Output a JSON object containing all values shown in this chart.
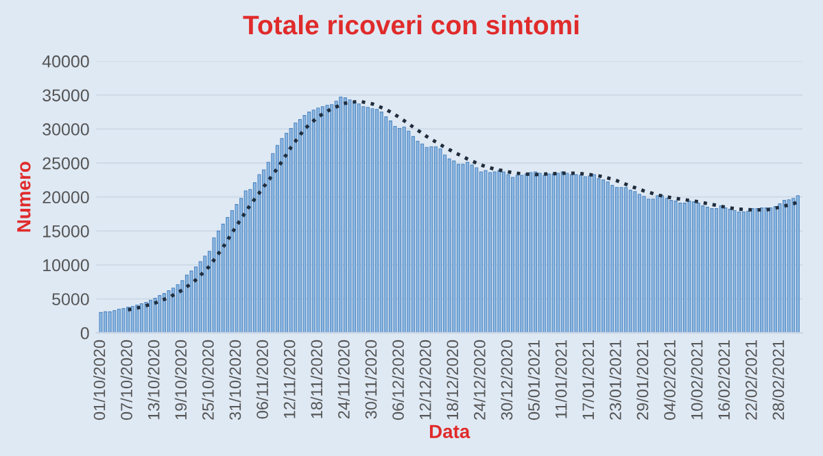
{
  "chart_data": {
    "type": "bar",
    "title": "Totale ricoveri con sintomi",
    "xlabel": "Data",
    "ylabel": "Numero",
    "x": [
      "2020-10-01",
      "2020-10-02",
      "2020-10-03",
      "2020-10-04",
      "2020-10-05",
      "2020-10-06",
      "2020-10-07",
      "2020-10-08",
      "2020-10-09",
      "2020-10-10",
      "2020-10-11",
      "2020-10-12",
      "2020-10-13",
      "2020-10-14",
      "2020-10-15",
      "2020-10-16",
      "2020-10-17",
      "2020-10-18",
      "2020-10-19",
      "2020-10-20",
      "2020-10-21",
      "2020-10-22",
      "2020-10-23",
      "2020-10-24",
      "2020-10-25",
      "2020-10-26",
      "2020-10-27",
      "2020-10-28",
      "2020-10-29",
      "2020-10-30",
      "2020-10-31",
      "2020-11-01",
      "2020-11-02",
      "2020-11-03",
      "2020-11-04",
      "2020-11-05",
      "2020-11-06",
      "2020-11-07",
      "2020-11-08",
      "2020-11-09",
      "2020-11-10",
      "2020-11-11",
      "2020-11-12",
      "2020-11-13",
      "2020-11-14",
      "2020-11-15",
      "2020-11-16",
      "2020-11-17",
      "2020-11-18",
      "2020-11-19",
      "2020-11-20",
      "2020-11-21",
      "2020-11-22",
      "2020-11-23",
      "2020-11-24",
      "2020-11-25",
      "2020-11-26",
      "2020-11-27",
      "2020-11-28",
      "2020-11-29",
      "2020-11-30",
      "2020-12-01",
      "2020-12-02",
      "2020-12-03",
      "2020-12-04",
      "2020-12-05",
      "2020-12-06",
      "2020-12-07",
      "2020-12-08",
      "2020-12-09",
      "2020-12-10",
      "2020-12-11",
      "2020-12-12",
      "2020-12-13",
      "2020-12-14",
      "2020-12-15",
      "2020-12-16",
      "2020-12-17",
      "2020-12-18",
      "2020-12-19",
      "2020-12-20",
      "2020-12-21",
      "2020-12-22",
      "2020-12-23",
      "2020-12-24",
      "2020-12-25",
      "2020-12-26",
      "2020-12-27",
      "2020-12-28",
      "2020-12-29",
      "2020-12-30",
      "2020-12-31",
      "2021-01-01",
      "2021-01-02",
      "2021-01-03",
      "2021-01-04",
      "2021-01-05",
      "2021-01-06",
      "2021-01-07",
      "2021-01-08",
      "2021-01-09",
      "2021-01-10",
      "2021-01-11",
      "2021-01-12",
      "2021-01-13",
      "2021-01-14",
      "2021-01-15",
      "2021-01-16",
      "2021-01-17",
      "2021-01-18",
      "2021-01-19",
      "2021-01-20",
      "2021-01-21",
      "2021-01-22",
      "2021-01-23",
      "2021-01-24",
      "2021-01-25",
      "2021-01-26",
      "2021-01-27",
      "2021-01-28",
      "2021-01-29",
      "2021-01-30",
      "2021-01-31",
      "2021-02-01",
      "2021-02-02",
      "2021-02-03",
      "2021-02-04",
      "2021-02-05",
      "2021-02-06",
      "2021-02-07",
      "2021-02-08",
      "2021-02-09",
      "2021-02-10",
      "2021-02-11",
      "2021-02-12",
      "2021-02-13",
      "2021-02-14",
      "2021-02-15",
      "2021-02-16",
      "2021-02-17",
      "2021-02-18",
      "2021-02-19",
      "2021-02-20",
      "2021-02-21",
      "2021-02-22",
      "2021-02-23",
      "2021-02-24",
      "2021-02-25",
      "2021-02-26",
      "2021-02-27",
      "2021-02-28",
      "2021-03-01",
      "2021-03-02",
      "2021-03-03",
      "2021-03-04"
    ],
    "series": [
      {
        "color": "#8db8e2",
        "values": [
          3000,
          3100,
          3100,
          3300,
          3500,
          3600,
          3800,
          3900,
          4100,
          4300,
          4500,
          4800,
          5100,
          5500,
          5800,
          6200,
          6600,
          7100,
          7700,
          8500,
          9100,
          9700,
          10500,
          11300,
          12000,
          14000,
          15000,
          16000,
          17000,
          18000,
          18900,
          19800,
          20900,
          21100,
          22100,
          23300,
          24000,
          25100,
          26400,
          27600,
          28600,
          29400,
          30100,
          30900,
          31400,
          32000,
          32500,
          32800,
          33100,
          33300,
          33500,
          33600,
          34100,
          34700,
          34600,
          34300,
          34000,
          33700,
          33300,
          33200,
          33000,
          32900,
          32500,
          31800,
          31200,
          30400,
          30100,
          30300,
          29700,
          28900,
          28200,
          27800,
          27300,
          27400,
          27400,
          27100,
          26200,
          25600,
          25300,
          24800,
          24800,
          25100,
          24700,
          24300,
          23700,
          23900,
          23600,
          23700,
          23900,
          23700,
          23300,
          22900,
          23200,
          23200,
          23400,
          23600,
          23700,
          23500,
          23200,
          23400,
          23400,
          23500,
          23700,
          23500,
          23300,
          23300,
          23200,
          23000,
          23100,
          23300,
          22700,
          22500,
          22200,
          21700,
          21400,
          21400,
          21400,
          21000,
          20800,
          20400,
          20100,
          19700,
          19700,
          20200,
          20200,
          19800,
          19500,
          19400,
          19100,
          19100,
          19400,
          19300,
          19100,
          18700,
          18500,
          18300,
          18300,
          18700,
          18400,
          18200,
          18000,
          17800,
          17800,
          17900,
          18300,
          18300,
          18400,
          18400,
          18400,
          18600,
          19000,
          19500,
          19600,
          19800,
          20200
        ]
      },
      {
        "type": "line",
        "color": "#1f2d3d",
        "line_style": "dotted",
        "x": [
          "2020-10-07",
          "2020-10-10",
          "2020-10-13",
          "2020-10-16",
          "2020-10-19",
          "2020-10-22",
          "2020-10-25",
          "2020-10-28",
          "2020-10-31",
          "2020-11-03",
          "2020-11-06",
          "2020-11-09",
          "2020-11-12",
          "2020-11-15",
          "2020-11-18",
          "2020-11-21",
          "2020-11-24",
          "2020-11-27",
          "2020-11-30",
          "2020-12-03",
          "2020-12-06",
          "2020-12-09",
          "2020-12-12",
          "2020-12-15",
          "2020-12-18",
          "2020-12-21",
          "2020-12-24",
          "2020-12-27",
          "2020-12-30",
          "2021-01-02",
          "2021-01-05",
          "2021-01-08",
          "2021-01-11",
          "2021-01-14",
          "2021-01-17",
          "2021-01-20",
          "2021-01-23",
          "2021-01-26",
          "2021-01-29",
          "2021-02-01",
          "2021-02-04",
          "2021-02-07",
          "2021-02-10",
          "2021-02-13",
          "2021-02-16",
          "2021-02-19",
          "2021-02-22",
          "2021-02-25",
          "2021-02-28",
          "2021-03-03",
          "2021-03-04"
        ],
        "values": [
          3400,
          3800,
          4400,
          5200,
          6300,
          7800,
          9800,
          12600,
          15800,
          18800,
          21500,
          24200,
          27300,
          30000,
          31800,
          33000,
          33800,
          34100,
          33700,
          32900,
          31700,
          30300,
          28900,
          27700,
          26600,
          25600,
          24700,
          24100,
          23700,
          23400,
          23300,
          23400,
          23500,
          23500,
          23300,
          23000,
          22400,
          21600,
          20900,
          20300,
          19900,
          19600,
          19300,
          18900,
          18500,
          18200,
          18100,
          18100,
          18500,
          19000,
          19300
        ]
      }
    ],
    "ylim": [
      0,
      40000
    ],
    "yticks": [
      0,
      5000,
      10000,
      15000,
      20000,
      25000,
      30000,
      35000,
      40000
    ],
    "xlim": [
      "2020-09-30",
      "2021-03-05"
    ],
    "xticks": [
      {
        "value": "2020-10-01",
        "label": "01/10/2020"
      },
      {
        "value": "2020-10-07",
        "label": "07/10/2020"
      },
      {
        "value": "2020-10-13",
        "label": "13/10/2020"
      },
      {
        "value": "2020-10-19",
        "label": "19/10/2020"
      },
      {
        "value": "2020-10-25",
        "label": "25/10/2020"
      },
      {
        "value": "2020-10-31",
        "label": "31/10/2020"
      },
      {
        "value": "2020-11-06",
        "label": "06/11/2020"
      },
      {
        "value": "2020-11-12",
        "label": "12/11/2020"
      },
      {
        "value": "2020-11-18",
        "label": "18/11/2020"
      },
      {
        "value": "2020-11-24",
        "label": "24/11/2020"
      },
      {
        "value": "2020-11-30",
        "label": "30/11/2020"
      },
      {
        "value": "2020-12-06",
        "label": "06/12/2020"
      },
      {
        "value": "2020-12-12",
        "label": "12/12/2020"
      },
      {
        "value": "2020-12-18",
        "label": "18/12/2020"
      },
      {
        "value": "2020-12-24",
        "label": "24/12/2020"
      },
      {
        "value": "2020-12-30",
        "label": "30/12/2020"
      },
      {
        "value": "2021-01-05",
        "label": "05/01/2021"
      },
      {
        "value": "2021-01-11",
        "label": "11/01/2021"
      },
      {
        "value": "2021-01-17",
        "label": "17/01/2021"
      },
      {
        "value": "2021-01-23",
        "label": "23/01/2021"
      },
      {
        "value": "2021-01-29",
        "label": "29/01/2021"
      },
      {
        "value": "2021-02-04",
        "label": "04/02/2021"
      },
      {
        "value": "2021-02-10",
        "label": "10/02/2021"
      },
      {
        "value": "2021-02-16",
        "label": "16/02/2021"
      },
      {
        "value": "2021-02-22",
        "label": "22/02/2021"
      },
      {
        "value": "2021-02-28",
        "label": "28/02/2021"
      }
    ],
    "grid": "y",
    "legend": false
  }
}
